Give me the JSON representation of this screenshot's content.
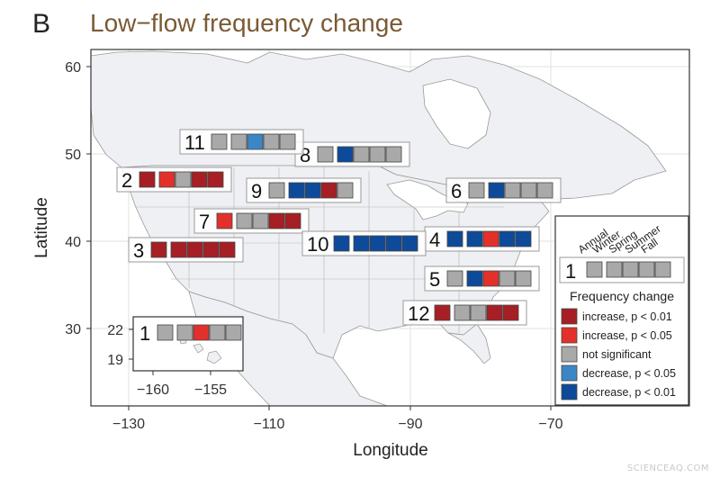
{
  "panel_letter": "B",
  "title": "Low−flow frequency change",
  "watermark": "SCIENCEAQ.COM",
  "colors": {
    "inc01": "#a51f24",
    "inc05": "#e4302b",
    "ns": "#a9a9a9",
    "dec05": "#3b87c6",
    "dec01": "#0d4b9a"
  },
  "chart_data": {
    "type": "map",
    "xlabel": "Longitude",
    "ylabel": "Latitude",
    "xlim": [
      -135,
      -60
    ],
    "ylim": [
      26,
      61
    ],
    "xticks": [
      -130,
      -110,
      -90,
      -70
    ],
    "yticks": [
      30,
      40,
      50,
      60
    ],
    "tick_labels": {
      "x": [
        "−130",
        "−110",
        "−90",
        "−70"
      ],
      "y": [
        "30",
        "40",
        "50",
        "60"
      ]
    },
    "inset": {
      "xticks": [
        -160,
        -155
      ],
      "xtick_labels": [
        "−160",
        "−155"
      ],
      "yticks": [
        19,
        22
      ],
      "ytick_labels": [
        "19",
        "22"
      ]
    },
    "seasons": [
      "Annual",
      "Winter",
      "Spring",
      "Summer",
      "Fall"
    ],
    "regions": [
      {
        "id": "1",
        "label": "1",
        "values": [
          "ns",
          "ns",
          "inc05",
          "ns",
          "ns"
        ]
      },
      {
        "id": "2",
        "label": "2",
        "values": [
          "inc01",
          "inc05",
          "ns",
          "inc01",
          "inc01"
        ]
      },
      {
        "id": "3",
        "label": "3",
        "values": [
          "inc01",
          "inc01",
          "inc01",
          "inc01",
          "inc01"
        ]
      },
      {
        "id": "4",
        "label": "4",
        "values": [
          "dec01",
          "dec01",
          "inc05",
          "dec01",
          "dec01"
        ]
      },
      {
        "id": "5",
        "label": "5",
        "values": [
          "ns",
          "dec01",
          "inc05",
          "ns",
          "ns"
        ]
      },
      {
        "id": "6",
        "label": "6",
        "values": [
          "ns",
          "dec01",
          "ns",
          "ns",
          "ns"
        ]
      },
      {
        "id": "7",
        "label": "7",
        "values": [
          "inc05",
          "ns",
          "ns",
          "inc01",
          "inc01"
        ]
      },
      {
        "id": "8",
        "label": "8",
        "values": [
          "ns",
          "dec01",
          "ns",
          "ns",
          "ns"
        ]
      },
      {
        "id": "9",
        "label": "9",
        "values": [
          "ns",
          "dec01",
          "dec01",
          "inc01",
          "ns"
        ]
      },
      {
        "id": "10",
        "label": "10",
        "values": [
          "dec01",
          "dec01",
          "dec01",
          "dec01",
          "dec01"
        ]
      },
      {
        "id": "11",
        "label": "11",
        "values": [
          "ns",
          "ns",
          "dec05",
          "ns",
          "ns"
        ]
      },
      {
        "id": "12",
        "label": "12",
        "values": [
          "inc01",
          "ns",
          "ns",
          "inc01",
          "inc01"
        ]
      }
    ],
    "legend": {
      "example_label": "1",
      "title": "Frequency change",
      "entries": [
        {
          "key": "inc01",
          "label": "increase, p < 0.01"
        },
        {
          "key": "inc05",
          "label": "increase, p < 0.05"
        },
        {
          "key": "ns",
          "label": "not significant"
        },
        {
          "key": "dec05",
          "label": "decrease, p < 0.05"
        },
        {
          "key": "dec01",
          "label": "decrease, p < 0.01"
        }
      ]
    }
  }
}
